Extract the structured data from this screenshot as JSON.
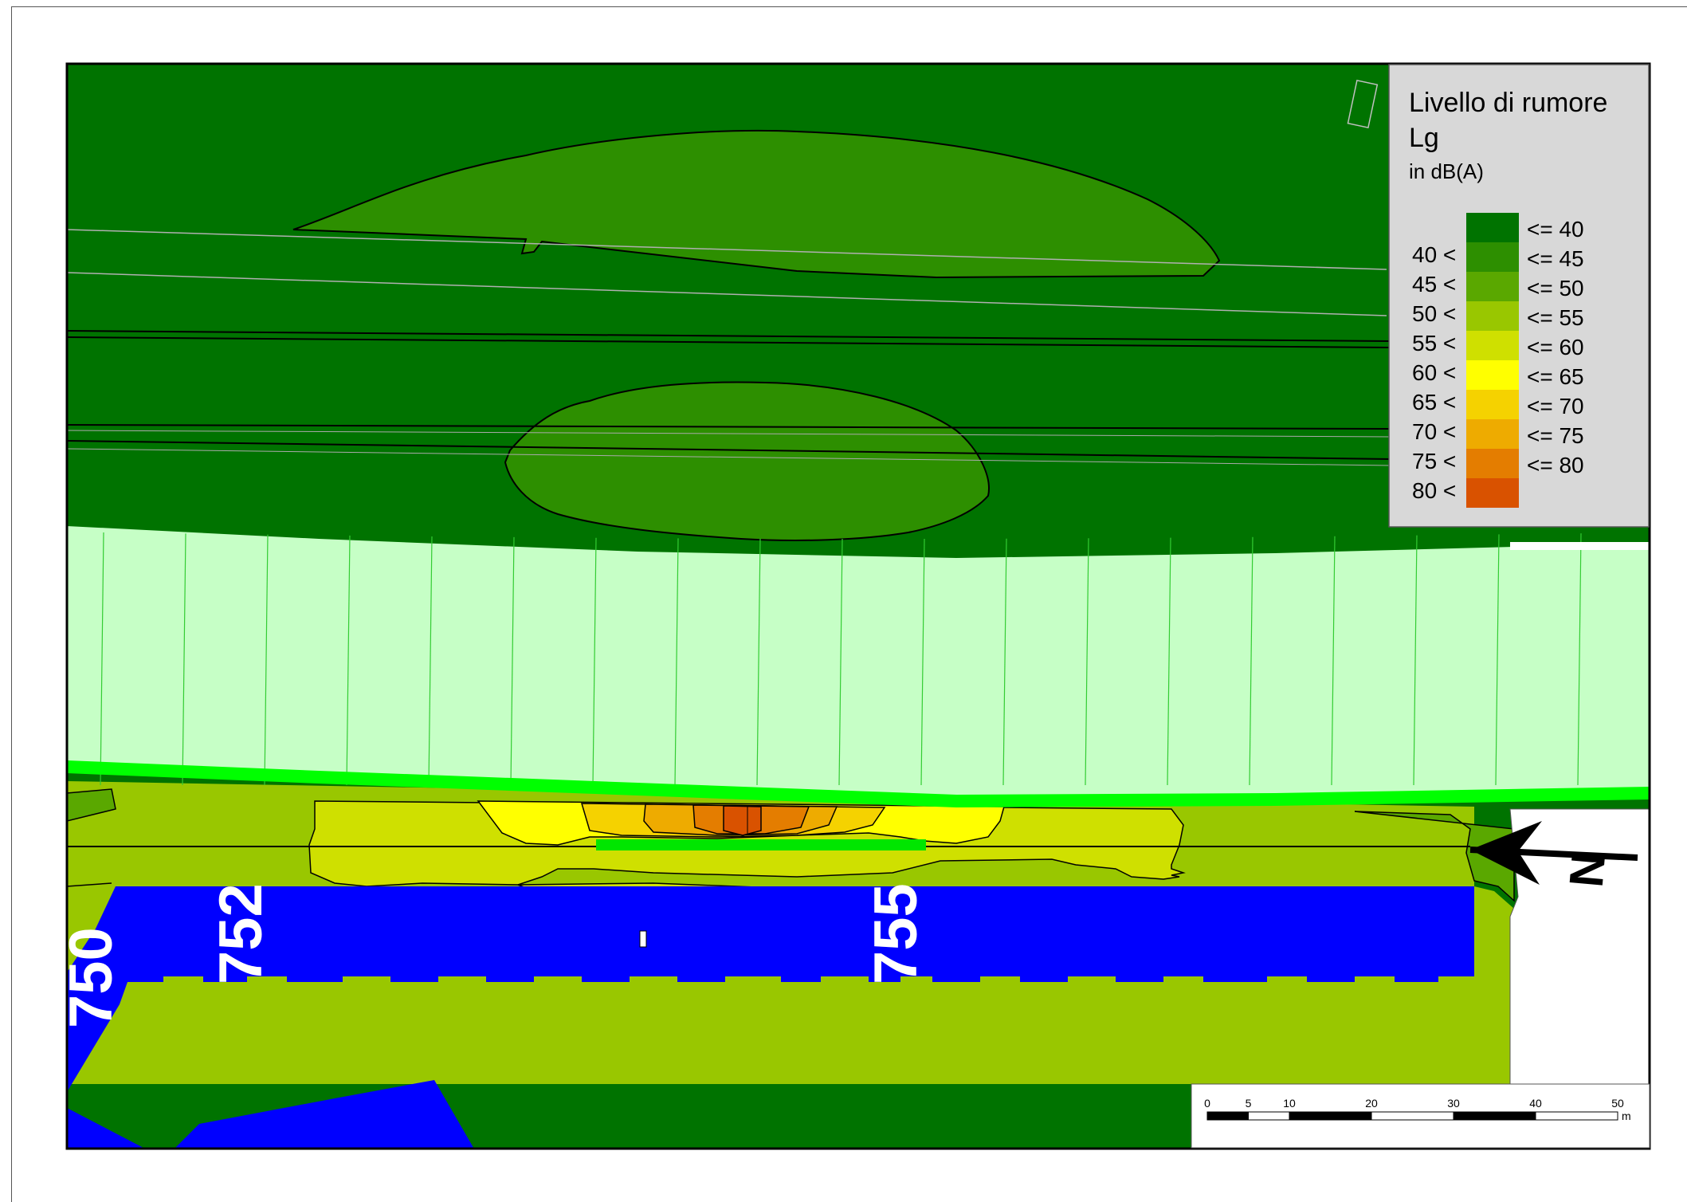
{
  "legend": {
    "title_line1": "Livello di rumore",
    "title_line2": "Lg",
    "unit": "in dB(A)",
    "classes": [
      {
        "lower": "",
        "upper": "<= 40",
        "color": "#007300"
      },
      {
        "lower": "40 <",
        "upper": "<= 45",
        "color": "#2d8f00"
      },
      {
        "lower": "45 <",
        "upper": "<= 50",
        "color": "#5aa800"
      },
      {
        "lower": "50 <",
        "upper": "<= 55",
        "color": "#99c700"
      },
      {
        "lower": "55 <",
        "upper": "<= 60",
        "color": "#cfe000"
      },
      {
        "lower": "60 <",
        "upper": "<= 65",
        "color": "#ffff00"
      },
      {
        "lower": "65 <",
        "upper": "<= 70",
        "color": "#f5d200"
      },
      {
        "lower": "70 <",
        "upper": "<= 75",
        "color": "#eeab00"
      },
      {
        "lower": "75 <",
        "upper": "<= 80",
        "color": "#e47d00"
      },
      {
        "lower": "80 <",
        "upper": "",
        "color": "#d95200"
      }
    ]
  },
  "map": {
    "km_labels": [
      "750",
      "752",
      "755"
    ],
    "north_label": "N",
    "colors": {
      "road": "#0000ff",
      "wall_zone": "#c6ffc6",
      "barrier": "#00ff00",
      "white_area": "#ffffff"
    }
  },
  "scale_bar": {
    "ticks": [
      "0",
      "5",
      "10",
      "20",
      "30",
      "40",
      "50"
    ],
    "unit": "m"
  }
}
